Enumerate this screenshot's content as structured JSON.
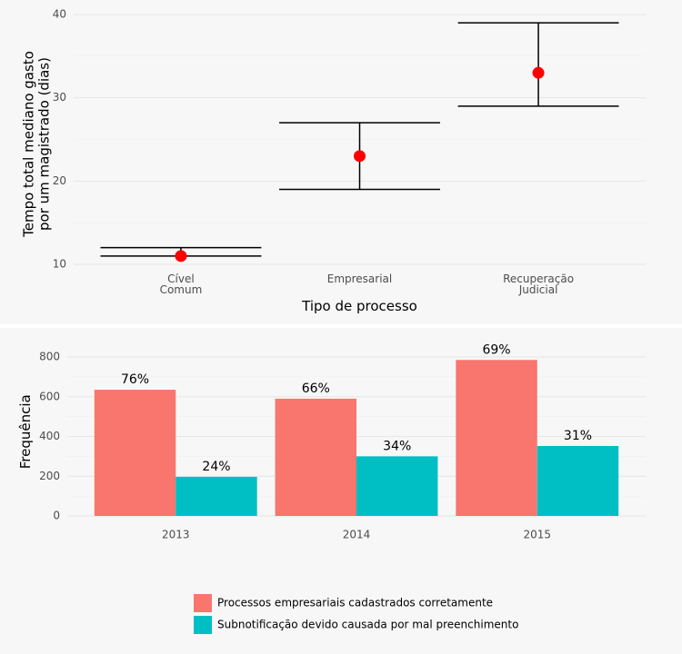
{
  "chart_data": [
    {
      "type": "errorbar",
      "categories": [
        "Cível\nComum",
        "Empresarial",
        "Recuperação\nJudicial"
      ],
      "values": [
        11,
        23,
        33
      ],
      "low": [
        11,
        19,
        29
      ],
      "high": [
        12,
        27,
        39
      ],
      "color": "#ff0000",
      "x_label": "Tipo de processo",
      "y_label": "Tempo total mediano gasto\npor um magistrado (dias)",
      "ylim": [
        9.3,
        40.7
      ],
      "yticks": [
        10,
        20,
        30,
        40
      ],
      "grid": true
    },
    {
      "type": "bar",
      "categories": [
        "2013",
        "2014",
        "2015"
      ],
      "series": [
        {
          "name": "Processos empresariais cadastrados corretamente",
          "color": "#f8766d",
          "values": [
            635,
            590,
            785
          ],
          "value_labels": [
            "76%",
            "66%",
            "69%"
          ]
        },
        {
          "name": "Subnotificação devido causada por mal preenchimento",
          "color": "#00bfc4",
          "values": [
            197,
            300,
            352
          ],
          "value_labels": [
            "24%",
            "34%",
            "31%"
          ]
        }
      ],
      "y_label": "Frequência",
      "ylim": [
        -40,
        840
      ],
      "yticks": [
        0,
        200,
        400,
        600,
        800
      ],
      "grid": true,
      "legend": "bottom"
    }
  ]
}
